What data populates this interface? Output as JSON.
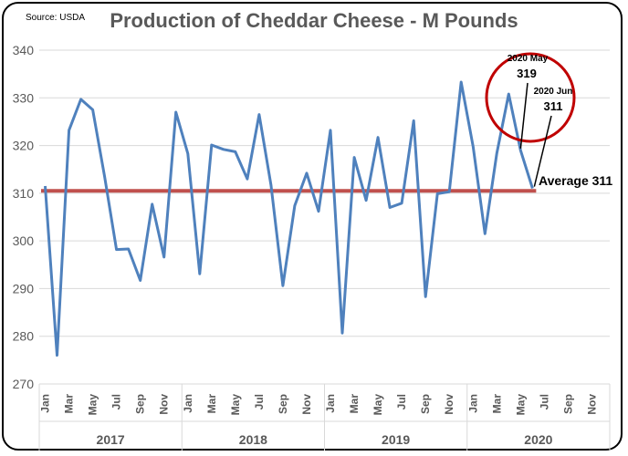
{
  "source_note": "Source: USDA",
  "chart_data": {
    "type": "line",
    "title": "Production of Cheddar Cheese - M Pounds",
    "xlabel": "",
    "ylabel": "",
    "ylim": [
      270,
      340
    ],
    "yticks": [
      270,
      280,
      290,
      300,
      310,
      320,
      330,
      340
    ],
    "grid": true,
    "month_labels": [
      "Jan",
      "Mar",
      "May",
      "Jul",
      "Sep",
      "Nov"
    ],
    "years": [
      "2017",
      "2018",
      "2019",
      "2020"
    ],
    "x": [
      "2017-01",
      "2017-02",
      "2017-03",
      "2017-04",
      "2017-05",
      "2017-06",
      "2017-07",
      "2017-08",
      "2017-09",
      "2017-10",
      "2017-11",
      "2017-12",
      "2018-01",
      "2018-02",
      "2018-03",
      "2018-04",
      "2018-05",
      "2018-06",
      "2018-07",
      "2018-08",
      "2018-09",
      "2018-10",
      "2018-11",
      "2018-12",
      "2019-01",
      "2019-02",
      "2019-03",
      "2019-04",
      "2019-05",
      "2019-06",
      "2019-07",
      "2019-08",
      "2019-09",
      "2019-10",
      "2019-11",
      "2019-12",
      "2020-01",
      "2020-02",
      "2020-03",
      "2020-04",
      "2020-05",
      "2020-06"
    ],
    "series": [
      {
        "color": "#4f81bd",
        "values": [
          311.5,
          276,
          323.2,
          329.7,
          327.5,
          313.5,
          298.2,
          298.3,
          291.7,
          307.7,
          296.6,
          327,
          318.3,
          293.1,
          320.1,
          319.2,
          318.7,
          313.0,
          326.5,
          311.7,
          290.6,
          307.4,
          314.2,
          306.2,
          323.2,
          280.7,
          317.5,
          308.5,
          321.7,
          307.0,
          307.9,
          325.2,
          288.3,
          309.9,
          310.3,
          333.3,
          319.8,
          301.5,
          318.4,
          330.8,
          319,
          311
        ]
      }
    ],
    "average": {
      "label": "Average 311",
      "value": 310.5,
      "color": "#c0504d"
    },
    "annotations": [
      {
        "label": "2020 May",
        "value_label": "319"
      },
      {
        "label": "2020 Jun",
        "value_label": "311"
      }
    ],
    "highlight_color": "#c00000"
  }
}
